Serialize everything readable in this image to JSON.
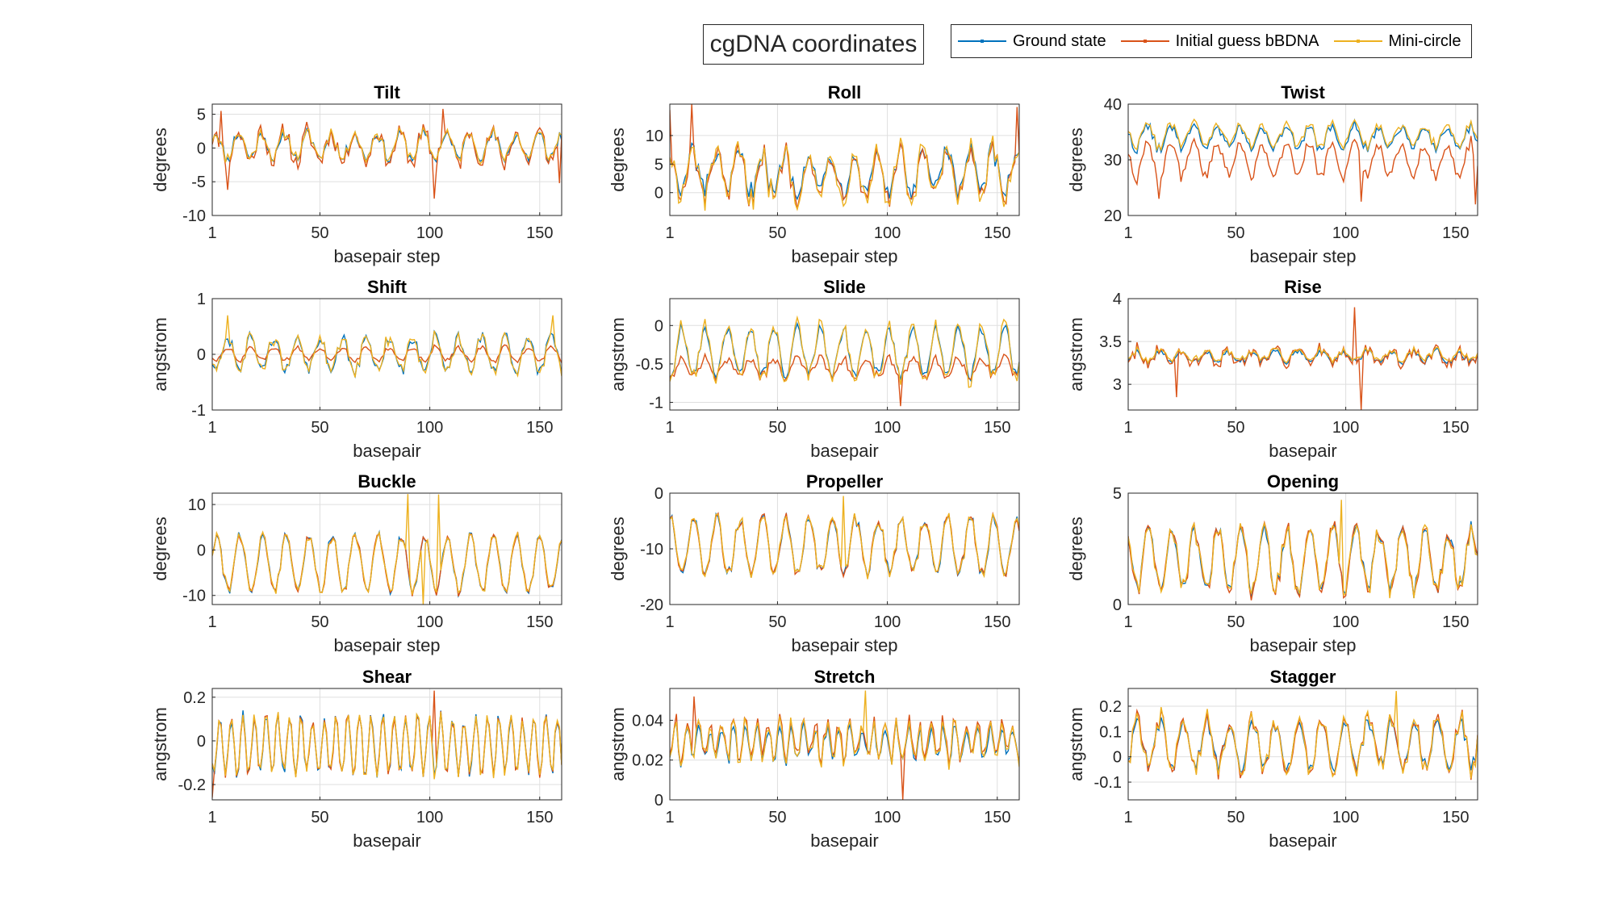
{
  "figure": {
    "title": "cgDNA coordinates",
    "legend": [
      "Ground state",
      "Initial guess bBDNA",
      "Mini-circle"
    ],
    "colors": {
      "ground_state": "#0072BD",
      "initial_guess": "#D95319",
      "mini_circle": "#EDB120",
      "grid": "#dfdfdf",
      "axis": "#262626"
    }
  },
  "chart_data": [
    {
      "type": "line",
      "title": "Tilt",
      "xlabel": "basepair step",
      "ylabel": "degrees",
      "xlim": [
        1,
        160
      ],
      "ylim": [
        -10,
        6.5
      ],
      "xticks": [
        1,
        50,
        100,
        150
      ],
      "yticks": [
        -10,
        -5,
        0,
        5
      ],
      "grid": true,
      "series": [
        {
          "name": "Ground state",
          "base": 0.3,
          "amp": 1.8,
          "period": 10.5,
          "noise": 1.2
        },
        {
          "name": "Initial guess bBDNA",
          "base": 0.2,
          "amp": 2.2,
          "period": 10.5,
          "noise": 1.8,
          "spikes": [
            [
              5,
              5.5
            ],
            [
              8,
              -6.2
            ],
            [
              106,
              5.8
            ],
            [
              102,
              -7.5
            ],
            [
              159,
              -5.2
            ]
          ]
        },
        {
          "name": "Mini-circle",
          "base": 0.4,
          "amp": 1.9,
          "period": 10.5,
          "noise": 1.1
        }
      ]
    },
    {
      "type": "line",
      "title": "Roll",
      "xlabel": "basepair step",
      "ylabel": "degrees",
      "xlim": [
        1,
        160
      ],
      "ylim": [
        -4,
        15.5
      ],
      "xticks": [
        1,
        50,
        100,
        150
      ],
      "yticks": [
        0,
        5,
        10
      ],
      "grid": true,
      "series": [
        {
          "name": "Ground state",
          "base": 3.5,
          "amp": 3.5,
          "period": 10.5,
          "noise": 2.5
        },
        {
          "name": "Initial guess bBDNA",
          "base": 3.0,
          "amp": 4.0,
          "period": 10.5,
          "noise": 2.5,
          "spikes": [
            [
              1,
              14.5
            ],
            [
              11,
              15.5
            ],
            [
              159,
              15
            ]
          ]
        },
        {
          "name": "Mini-circle",
          "base": 3.0,
          "amp": 4.5,
          "period": 10.5,
          "noise": 3.0
        }
      ]
    },
    {
      "type": "line",
      "title": "Twist",
      "xlabel": "basepair step",
      "ylabel": "degrees",
      "xlim": [
        1,
        160
      ],
      "ylim": [
        20,
        40
      ],
      "xticks": [
        1,
        50,
        100,
        150
      ],
      "yticks": [
        20,
        30,
        40
      ],
      "grid": true,
      "series": [
        {
          "name": "Ground state",
          "base": 34.0,
          "amp": 2.0,
          "period": 10.5,
          "noise": 1.2
        },
        {
          "name": "Initial guess bBDNA",
          "base": 30.0,
          "amp": 3.0,
          "period": 10.5,
          "noise": 1.5,
          "spikes": [
            [
              15,
              23
            ],
            [
              107,
              22.5
            ],
            [
              159,
              22
            ]
          ]
        },
        {
          "name": "Mini-circle",
          "base": 34.5,
          "amp": 2.0,
          "period": 10.5,
          "noise": 1.2
        }
      ]
    },
    {
      "type": "line",
      "title": "Shift",
      "xlabel": "basepair",
      "ylabel": "angstrom",
      "xlim": [
        1,
        160
      ],
      "ylim": [
        -1,
        1
      ],
      "xticks": [
        1,
        50,
        100,
        150
      ],
      "yticks": [
        -1,
        0,
        1
      ],
      "grid": true,
      "series": [
        {
          "name": "Ground state",
          "base": 0.0,
          "amp": 0.3,
          "period": 10.5,
          "noise": 0.15
        },
        {
          "name": "Initial guess bBDNA",
          "base": 0.0,
          "amp": 0.12,
          "period": 10.5,
          "noise": 0.06
        },
        {
          "name": "Mini-circle",
          "base": 0.0,
          "amp": 0.3,
          "period": 10.5,
          "noise": 0.15,
          "spikes": [
            [
              8,
              0.7
            ],
            [
              156,
              0.7
            ]
          ]
        }
      ]
    },
    {
      "type": "line",
      "title": "Slide",
      "xlabel": "basepair",
      "ylabel": "angstrom",
      "xlim": [
        1,
        160
      ],
      "ylim": [
        -1.1,
        0.35
      ],
      "xticks": [
        1,
        50,
        100,
        150
      ],
      "yticks": [
        -1,
        -0.5,
        0
      ],
      "grid": true,
      "series": [
        {
          "name": "Ground state",
          "base": -0.35,
          "amp": 0.3,
          "period": 10.5,
          "noise": 0.1
        },
        {
          "name": "Initial guess bBDNA",
          "base": -0.55,
          "amp": 0.12,
          "period": 10.5,
          "noise": 0.08,
          "spikes": [
            [
              106,
              -1.05
            ]
          ]
        },
        {
          "name": "Mini-circle",
          "base": -0.35,
          "amp": 0.35,
          "period": 10.5,
          "noise": 0.15
        }
      ]
    },
    {
      "type": "line",
      "title": "Rise",
      "xlabel": "basepair",
      "ylabel": "angstrom",
      "xlim": [
        1,
        160
      ],
      "ylim": [
        2.7,
        4
      ],
      "xticks": [
        1,
        50,
        100,
        150
      ],
      "yticks": [
        3,
        3.5,
        4
      ],
      "grid": true,
      "series": [
        {
          "name": "Ground state",
          "base": 3.32,
          "amp": 0.06,
          "period": 10.5,
          "noise": 0.05
        },
        {
          "name": "Initial guess bBDNA",
          "base": 3.32,
          "amp": 0.08,
          "period": 10.5,
          "noise": 0.1,
          "spikes": [
            [
              104,
              3.9
            ],
            [
              107,
              2.7
            ],
            [
              23,
              2.85
            ]
          ]
        },
        {
          "name": "Mini-circle",
          "base": 3.34,
          "amp": 0.06,
          "period": 10.5,
          "noise": 0.05
        }
      ]
    },
    {
      "type": "line",
      "title": "Buckle",
      "xlabel": "basepair step",
      "ylabel": "degrees",
      "xlim": [
        1,
        160
      ],
      "ylim": [
        -12,
        12.5
      ],
      "xticks": [
        1,
        50,
        100,
        150
      ],
      "yticks": [
        -10,
        0,
        10
      ],
      "grid": true,
      "series": [
        {
          "name": "Ground state",
          "base": -3.0,
          "amp": 6.0,
          "period": 10.5,
          "noise": 1.5
        },
        {
          "name": "Initial guess bBDNA",
          "base": -3.0,
          "amp": 6.0,
          "period": 10.5,
          "noise": 1.5
        },
        {
          "name": "Mini-circle",
          "base": -3.0,
          "amp": 6.0,
          "period": 10.5,
          "noise": 1.5,
          "spikes": [
            [
              90,
              12.3
            ],
            [
              97,
              -12
            ],
            [
              104,
              12.2
            ]
          ]
        }
      ]
    },
    {
      "type": "line",
      "title": "Propeller",
      "xlabel": "basepair step",
      "ylabel": "degrees",
      "xlim": [
        1,
        160
      ],
      "ylim": [
        -20,
        0
      ],
      "xticks": [
        1,
        50,
        100,
        150
      ],
      "yticks": [
        -20,
        -10,
        0
      ],
      "grid": true,
      "series": [
        {
          "name": "Ground state",
          "base": -9.5,
          "amp": 5.0,
          "period": 10.5,
          "noise": 1.5
        },
        {
          "name": "Initial guess bBDNA",
          "base": -9.5,
          "amp": 5.0,
          "period": 10.5,
          "noise": 1.5
        },
        {
          "name": "Mini-circle",
          "base": -9.5,
          "amp": 5.0,
          "period": 10.5,
          "noise": 1.5,
          "spikes": [
            [
              80,
              -0.5
            ]
          ]
        }
      ]
    },
    {
      "type": "line",
      "title": "Opening",
      "xlabel": "basepair step",
      "ylabel": "degrees",
      "xlim": [
        1,
        160
      ],
      "ylim": [
        0,
        5
      ],
      "xticks": [
        1,
        50,
        100,
        150
      ],
      "yticks": [
        0,
        5
      ],
      "grid": true,
      "series": [
        {
          "name": "Ground state",
          "base": 2.0,
          "amp": 1.3,
          "period": 10.5,
          "noise": 0.5
        },
        {
          "name": "Initial guess bBDNA",
          "base": 2.0,
          "amp": 1.4,
          "period": 10.5,
          "noise": 0.5
        },
        {
          "name": "Mini-circle",
          "base": 2.0,
          "amp": 1.3,
          "period": 10.5,
          "noise": 0.6,
          "spikes": [
            [
              98,
              4.7
            ]
          ]
        }
      ]
    },
    {
      "type": "line",
      "title": "Shear",
      "xlabel": "basepair",
      "ylabel": "angstrom",
      "xlim": [
        1,
        160
      ],
      "ylim": [
        -0.27,
        0.24
      ],
      "xticks": [
        1,
        50,
        100,
        150
      ],
      "yticks": [
        -0.2,
        0,
        0.2
      ],
      "grid": true,
      "series": [
        {
          "name": "Ground state",
          "base": -0.02,
          "amp": 0.13,
          "period": 5.3,
          "noise": 0.04
        },
        {
          "name": "Initial guess bBDNA",
          "base": -0.02,
          "amp": 0.13,
          "period": 5.3,
          "noise": 0.04,
          "spikes": [
            [
              1,
              -0.26
            ],
            [
              102,
              0.23
            ]
          ]
        },
        {
          "name": "Mini-circle",
          "base": -0.02,
          "amp": 0.13,
          "period": 5.3,
          "noise": 0.04
        }
      ]
    },
    {
      "type": "line",
      "title": "Stretch",
      "xlabel": "basepair",
      "ylabel": "angstrom",
      "xlim": [
        1,
        160
      ],
      "ylim": [
        0,
        0.056
      ],
      "xticks": [
        1,
        50,
        100,
        150
      ],
      "yticks": [
        0,
        0.02,
        0.04
      ],
      "grid": true,
      "series": [
        {
          "name": "Ground state",
          "base": 0.028,
          "amp": 0.008,
          "period": 5.3,
          "noise": 0.005
        },
        {
          "name": "Initial guess bBDNA",
          "base": 0.03,
          "amp": 0.009,
          "period": 5.3,
          "noise": 0.006,
          "spikes": [
            [
              107,
              0.0
            ],
            [
              12,
              0.052
            ]
          ]
        },
        {
          "name": "Mini-circle",
          "base": 0.029,
          "amp": 0.009,
          "period": 5.3,
          "noise": 0.006,
          "spikes": [
            [
              90,
              0.055
            ]
          ]
        }
      ]
    },
    {
      "type": "line",
      "title": "Stagger",
      "xlabel": "basepair",
      "ylabel": "angstrom",
      "xlim": [
        1,
        160
      ],
      "ylim": [
        -0.17,
        0.27
      ],
      "xticks": [
        1,
        50,
        100,
        150
      ],
      "yticks": [
        -0.1,
        0,
        0.1,
        0.2
      ],
      "grid": true,
      "series": [
        {
          "name": "Ground state",
          "base": 0.05,
          "amp": 0.09,
          "period": 10.5,
          "noise": 0.04
        },
        {
          "name": "Initial guess bBDNA",
          "base": 0.05,
          "amp": 0.1,
          "period": 10.5,
          "noise": 0.05
        },
        {
          "name": "Mini-circle",
          "base": 0.05,
          "amp": 0.1,
          "period": 10.5,
          "noise": 0.05,
          "spikes": [
            [
              123,
              0.26
            ]
          ]
        }
      ]
    }
  ]
}
